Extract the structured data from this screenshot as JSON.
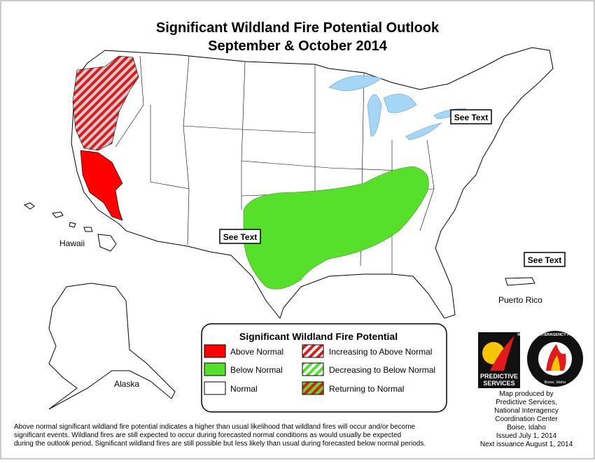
{
  "header": {
    "title": "Significant Wildland Fire Potential Outlook",
    "subtitle": "September & October 2014"
  },
  "map_labels": {
    "hawaii": "Hawaii",
    "alaska": "Alaska",
    "puerto_rico": "Puerto Rico"
  },
  "callouts": [
    "See Text",
    "See Text",
    "See Text"
  ],
  "legend": {
    "title": "Significant Wildland Fire Potential",
    "items": [
      "Above Normal",
      "Below Normal",
      "Normal",
      "Increasing to Above Normal",
      "Decreasing to Below Normal",
      "Returning to Normal"
    ]
  },
  "logos": {
    "predictive": [
      "PREDICTIVE",
      "SERVICES"
    ],
    "nifc": "NATIONAL INTERAGENCY FIRE CENTER",
    "nifc_place": "Boise, Idaho"
  },
  "credits": [
    "Map produced by",
    "Predictive Services,",
    "National Interagency",
    "Coordination Center",
    "Boise, Idaho",
    "Issued July 1, 2014",
    "Next issuance August 1, 2014"
  ],
  "footnote": [
    "Above normal significant wildland fire potential indicates a higher than usual likelihood that wildland fires will occur and/or become",
    "significant events.  Wildland fires are still expected to occur during forecasted normal conditions as would usually be expected",
    "during the outlook period.  Significant wildland fires are still possible but less likely than usual during forecasted below normal periods."
  ]
}
